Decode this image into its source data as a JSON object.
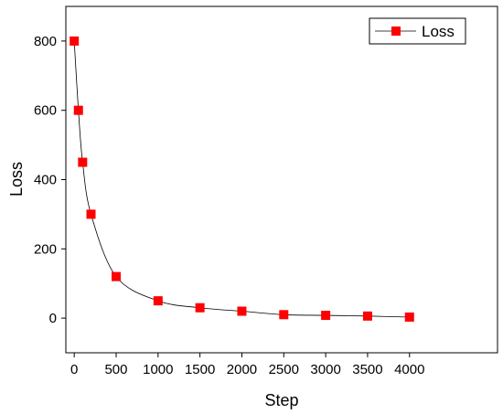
{
  "chart_data": {
    "type": "line",
    "title": "",
    "xlabel": "Step",
    "ylabel": "Loss",
    "xlim": [
      -100,
      5050
    ],
    "ylim": [
      -100,
      900
    ],
    "x_ticks": [
      0,
      500,
      1000,
      1500,
      2000,
      2500,
      3000,
      3500,
      4000
    ],
    "y_ticks": [
      0,
      200,
      400,
      600,
      800
    ],
    "x_tick_labels": [
      "0",
      "500",
      "1000",
      "1500",
      "2000",
      "2500",
      "3000",
      "3500",
      "4000"
    ],
    "y_tick_labels": [
      "0",
      "200",
      "400",
      "600",
      "800"
    ],
    "grid": false,
    "legend_position": "top-right",
    "series": [
      {
        "name": "Loss",
        "color": "#ff0000",
        "line_color": "#000000",
        "marker": "square",
        "x": [
          0,
          50,
          100,
          200,
          500,
          1000,
          1500,
          2000,
          2500,
          3000,
          3500,
          4000
        ],
        "y": [
          800,
          600,
          450,
          300,
          120,
          50,
          30,
          20,
          10,
          8,
          6,
          3
        ]
      }
    ]
  }
}
